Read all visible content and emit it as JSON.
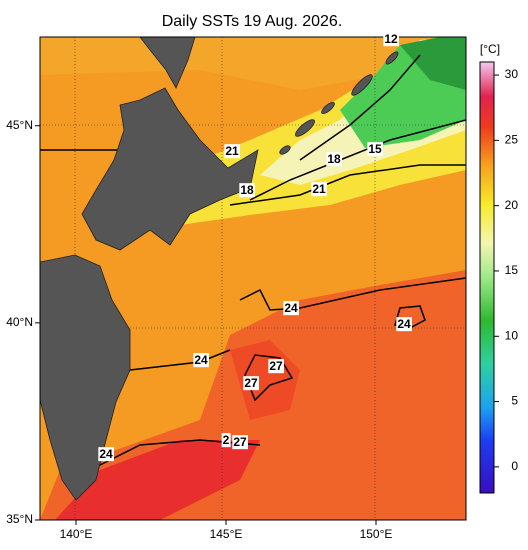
{
  "title": "Daily SSTs 19 Aug. 2026.",
  "map": {
    "xlim": [
      138.8,
      153
    ],
    "ylim": [
      35,
      47.25
    ],
    "xticks": [
      {
        "value": 140,
        "label": "140°E"
      },
      {
        "value": 145,
        "label": "145°E"
      },
      {
        "value": 150,
        "label": "150°E"
      }
    ],
    "yticks": [
      {
        "value": 35,
        "label": "35°N"
      },
      {
        "value": 40,
        "label": "40°N"
      },
      {
        "value": 45,
        "label": "45°N"
      }
    ]
  },
  "colorbar": {
    "unit": "[°C]",
    "lim": [
      -2,
      31
    ],
    "ticks": [
      0,
      5,
      10,
      15,
      20,
      25,
      30
    ]
  },
  "contour_labels": [
    12,
    15,
    18,
    21,
    18,
    21,
    24,
    24,
    24,
    27,
    27,
    2,
    27,
    24
  ]
}
